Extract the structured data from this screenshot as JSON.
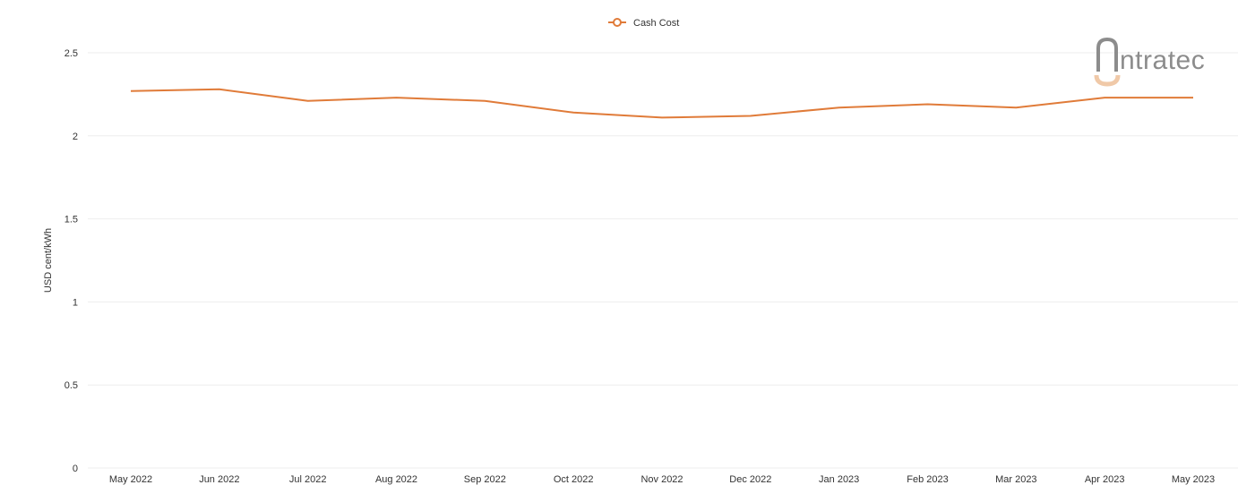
{
  "legend": {
    "label": "Cash Cost"
  },
  "logo": {
    "text": "intratec",
    "rest": "ntratec"
  },
  "colors": {
    "series": "#E07B39",
    "logo_gray": "#8c8c8c",
    "logo_accent": "#f0c9a8",
    "grid": "#eeeeee"
  },
  "chart_data": {
    "type": "line",
    "ylabel": "USD cent/kWh",
    "xlabel": "",
    "ylim": [
      0,
      2.5
    ],
    "yticks": [
      0,
      0.5,
      1,
      1.5,
      2,
      2.5
    ],
    "ytick_labels": [
      "0",
      "0.5",
      "1",
      "1.5",
      "2",
      "2.5"
    ],
    "categories": [
      "May 2022",
      "Jun 2022",
      "Jul 2022",
      "Aug 2022",
      "Sep 2022",
      "Oct 2022",
      "Nov 2022",
      "Dec 2022",
      "Jan 2023",
      "Feb 2023",
      "Mar 2023",
      "Apr 2023",
      "May 2023"
    ],
    "series": [
      {
        "name": "Cash Cost",
        "values": [
          2.27,
          2.28,
          2.21,
          2.23,
          2.21,
          2.14,
          2.11,
          2.12,
          2.17,
          2.19,
          2.17,
          2.23,
          2.23
        ]
      }
    ],
    "grid": true,
    "legend_position": "top-center"
  }
}
